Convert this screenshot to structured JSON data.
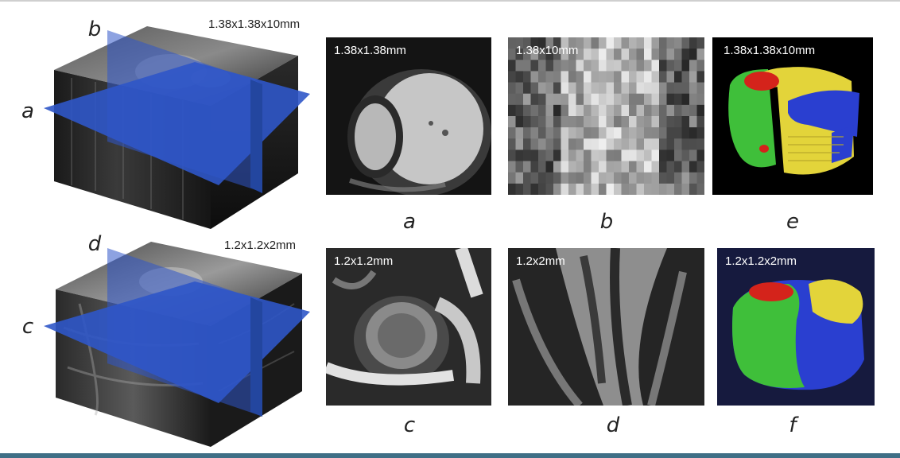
{
  "figure": {
    "cubes": [
      {
        "id": "top",
        "slice_labels": {
          "axial": "a",
          "vertical": "b"
        },
        "resolution": "1.38x1.38x10mm"
      },
      {
        "id": "bottom",
        "slice_labels": {
          "axial": "c",
          "vertical": "d"
        },
        "resolution": "1.2x1.2x2mm"
      }
    ],
    "panels": {
      "a": {
        "label": "a",
        "overlay": "1.38x1.38mm"
      },
      "b": {
        "label": "b",
        "overlay": "1.38x10mm"
      },
      "e": {
        "label": "e",
        "overlay": "1.38x1.38x10mm"
      },
      "c": {
        "label": "c",
        "overlay": "1.2x1.2mm"
      },
      "d": {
        "label": "d",
        "overlay": "1.2x2mm"
      },
      "f": {
        "label": "f",
        "overlay": "1.2x1.2x2mm"
      }
    },
    "colors": {
      "plane_blue": "#2f56c8",
      "seg_green": "#3fbf3a",
      "seg_yellow": "#e3d43a",
      "seg_blue": "#2a3fd0",
      "seg_red": "#d4231b",
      "rule_teal": "#3f6f86"
    }
  }
}
